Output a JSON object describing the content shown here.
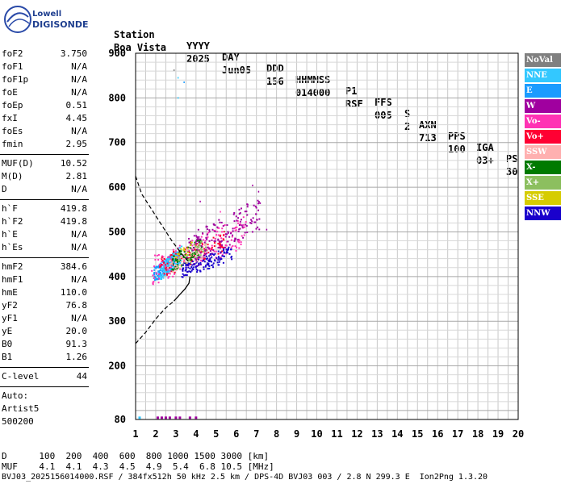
{
  "logo": {
    "line1": "Lowell",
    "line2": "DIGISONDE"
  },
  "header": {
    "labels": [
      "Station",
      "YYYY",
      "DAY",
      "DDD",
      "HHMMSS",
      "P1",
      "FFS",
      "S",
      "AXN",
      "PPS",
      "IGA",
      "PS"
    ],
    "values": [
      "Boa Vista",
      "2025",
      "Jun05",
      "156",
      "014000",
      "RSF",
      "005",
      "2",
      "713",
      "100",
      "03+",
      "30"
    ]
  },
  "params": {
    "group1": [
      {
        "name": "foF2",
        "value": "3.750"
      },
      {
        "name": "foF1",
        "value": "N/A"
      },
      {
        "name": "foF1p",
        "value": "N/A"
      },
      {
        "name": "foE",
        "value": "N/A"
      },
      {
        "name": "foEp",
        "value": "0.51"
      },
      {
        "name": "fxI",
        "value": "4.45"
      },
      {
        "name": "foEs",
        "value": "N/A"
      },
      {
        "name": "fmin",
        "value": "2.95"
      }
    ],
    "group2": [
      {
        "name": "MUF(D)",
        "value": "10.52"
      },
      {
        "name": "M(D)",
        "value": "2.81"
      },
      {
        "name": "D",
        "value": "N/A"
      }
    ],
    "group3": [
      {
        "name": "h`F",
        "value": "419.8"
      },
      {
        "name": "h`F2",
        "value": "419.8"
      },
      {
        "name": "h`E",
        "value": "N/A"
      },
      {
        "name": "h`Es",
        "value": "N/A"
      }
    ],
    "group4": [
      {
        "name": "hmF2",
        "value": "384.6"
      },
      {
        "name": "hmF1",
        "value": "N/A"
      },
      {
        "name": "hmE",
        "value": "110.0"
      },
      {
        "name": "yF2",
        "value": "76.8"
      },
      {
        "name": "yF1",
        "value": "N/A"
      },
      {
        "name": "yE",
        "value": "20.0"
      },
      {
        "name": "B0",
        "value": "91.3"
      },
      {
        "name": "B1",
        "value": "1.26"
      }
    ],
    "clevel": {
      "name": "C-level",
      "value": "44"
    },
    "auto": [
      "Auto:",
      "Artist5",
      "500200"
    ]
  },
  "legend": [
    {
      "label": "NoVal",
      "color": "#808080"
    },
    {
      "label": "NNE",
      "color": "#33c8ff"
    },
    {
      "label": "E",
      "color": "#1a9bff"
    },
    {
      "label": "W",
      "color": "#a0009f"
    },
    {
      "label": "Vo-",
      "color": "#ff33b4"
    },
    {
      "label": "Vo+",
      "color": "#ff0033"
    },
    {
      "label": "SSW",
      "color": "#ffb0b0"
    },
    {
      "label": "X-",
      "color": "#007a00"
    },
    {
      "label": "X+",
      "color": "#8cbf5f"
    },
    {
      "label": "SSE",
      "color": "#d6cc00"
    },
    {
      "label": "NNW",
      "color": "#1a00cc"
    }
  ],
  "footer": {
    "line1": "D      100  200  400  600  800 1000 1500 3000 [km]",
    "line2": "MUF    4.1  4.1  4.3  4.5  4.9  5.4  6.8 10.5 [MHz]",
    "line3": "BVJ03_2025156014000.RSF / 384fx512h 50 kHz 2.5 km / DPS-4D BVJ03 003 / 2.8 N 299.3 E  Ion2Png 1.3.20"
  },
  "chart_data": {
    "type": "scatter",
    "xlim": [
      1,
      20
    ],
    "ylim": [
      80,
      900
    ],
    "x_ticks": [
      1,
      2,
      3,
      4,
      5,
      6,
      7,
      8,
      9,
      10,
      11,
      12,
      13,
      14,
      15,
      16,
      17,
      18,
      19,
      20
    ],
    "y_ticks": [
      80,
      200,
      300,
      400,
      500,
      600,
      700,
      800,
      900
    ],
    "grid": true,
    "clusters": [
      {
        "name": "E",
        "color": "#1a9bff",
        "x_range": [
          1.9,
          3.1
        ],
        "y_range": [
          395,
          470
        ],
        "count": 180
      },
      {
        "name": "NNE",
        "color": "#33c8ff",
        "x_range": [
          2.2,
          3.3
        ],
        "y_range": [
          400,
          480
        ],
        "count": 120
      },
      {
        "name": "Vo-",
        "color": "#ff33b4",
        "x_range": [
          1.8,
          6.5
        ],
        "y_range": [
          400,
          560
        ],
        "count": 160
      },
      {
        "name": "Vo+",
        "color": "#ff0033",
        "x_range": [
          2.2,
          5.5
        ],
        "y_range": [
          410,
          520
        ],
        "count": 110
      },
      {
        "name": "X-",
        "color": "#007a00",
        "x_range": [
          2.8,
          4.3
        ],
        "y_range": [
          420,
          500
        ],
        "count": 90
      },
      {
        "name": "X+",
        "color": "#8cbf5f",
        "x_range": [
          3.0,
          4.5
        ],
        "y_range": [
          420,
          500
        ],
        "count": 50
      },
      {
        "name": "W",
        "color": "#a0009f",
        "x_range": [
          3.5,
          7.2
        ],
        "y_range": [
          440,
          600
        ],
        "count": 150
      },
      {
        "name": "NNW",
        "color": "#1a00cc",
        "x_range": [
          3.3,
          5.8
        ],
        "y_range": [
          405,
          480
        ],
        "count": 140
      },
      {
        "name": "SSW",
        "color": "#ffb0b0",
        "x_range": [
          2.5,
          4.5
        ],
        "y_range": [
          410,
          490
        ],
        "count": 40
      },
      {
        "name": "SSE",
        "color": "#d6cc00",
        "x_range": [
          3.0,
          4.0
        ],
        "y_range": [
          440,
          490
        ],
        "count": 15
      }
    ],
    "outliers": [
      {
        "x": 3.1,
        "y": 845,
        "color": "#33c8ff"
      },
      {
        "x": 3.1,
        "y": 800,
        "color": "#33c8ff"
      },
      {
        "x": 3.4,
        "y": 835,
        "color": "#1a9bff"
      },
      {
        "x": 2.9,
        "y": 862,
        "color": "#808080"
      },
      {
        "x": 4.2,
        "y": 568,
        "color": "#a0009f"
      },
      {
        "x": 6.8,
        "y": 604,
        "color": "#a0009f"
      },
      {
        "x": 7.1,
        "y": 590,
        "color": "#a0009f"
      },
      {
        "x": 7.5,
        "y": 505,
        "color": "#a0009f"
      },
      {
        "x": 5.2,
        "y": 545,
        "color": "#ff33b4"
      }
    ],
    "bottom_points": [
      {
        "x": 1.2,
        "y": 83,
        "color": "#33c8ff"
      },
      {
        "x": 2.1,
        "y": 83,
        "color": "#a0009f"
      },
      {
        "x": 2.3,
        "y": 83,
        "color": "#a0009f"
      },
      {
        "x": 2.5,
        "y": 83,
        "color": "#a0009f"
      },
      {
        "x": 2.7,
        "y": 83,
        "color": "#a0009f"
      },
      {
        "x": 3.0,
        "y": 83,
        "color": "#a0009f"
      },
      {
        "x": 3.2,
        "y": 83,
        "color": "#a0009f"
      },
      {
        "x": 3.7,
        "y": 83,
        "color": "#a0009f"
      },
      {
        "x": 4.0,
        "y": 83,
        "color": "#a0009f"
      }
    ],
    "dashed_curves": [
      {
        "points": [
          [
            1.0,
            625
          ],
          [
            1.3,
            585
          ],
          [
            1.8,
            550
          ],
          [
            2.3,
            515
          ],
          [
            2.8,
            480
          ],
          [
            3.3,
            450
          ],
          [
            3.7,
            430
          ]
        ]
      },
      {
        "points": [
          [
            1.0,
            250
          ],
          [
            1.5,
            275
          ],
          [
            2.0,
            305
          ],
          [
            2.5,
            330
          ],
          [
            2.9,
            345
          ]
        ]
      }
    ],
    "solid_curve": {
      "points": [
        [
          2.9,
          345
        ],
        [
          3.2,
          360
        ],
        [
          3.45,
          372
        ],
        [
          3.65,
          385
        ],
        [
          3.7,
          400
        ]
      ]
    }
  }
}
